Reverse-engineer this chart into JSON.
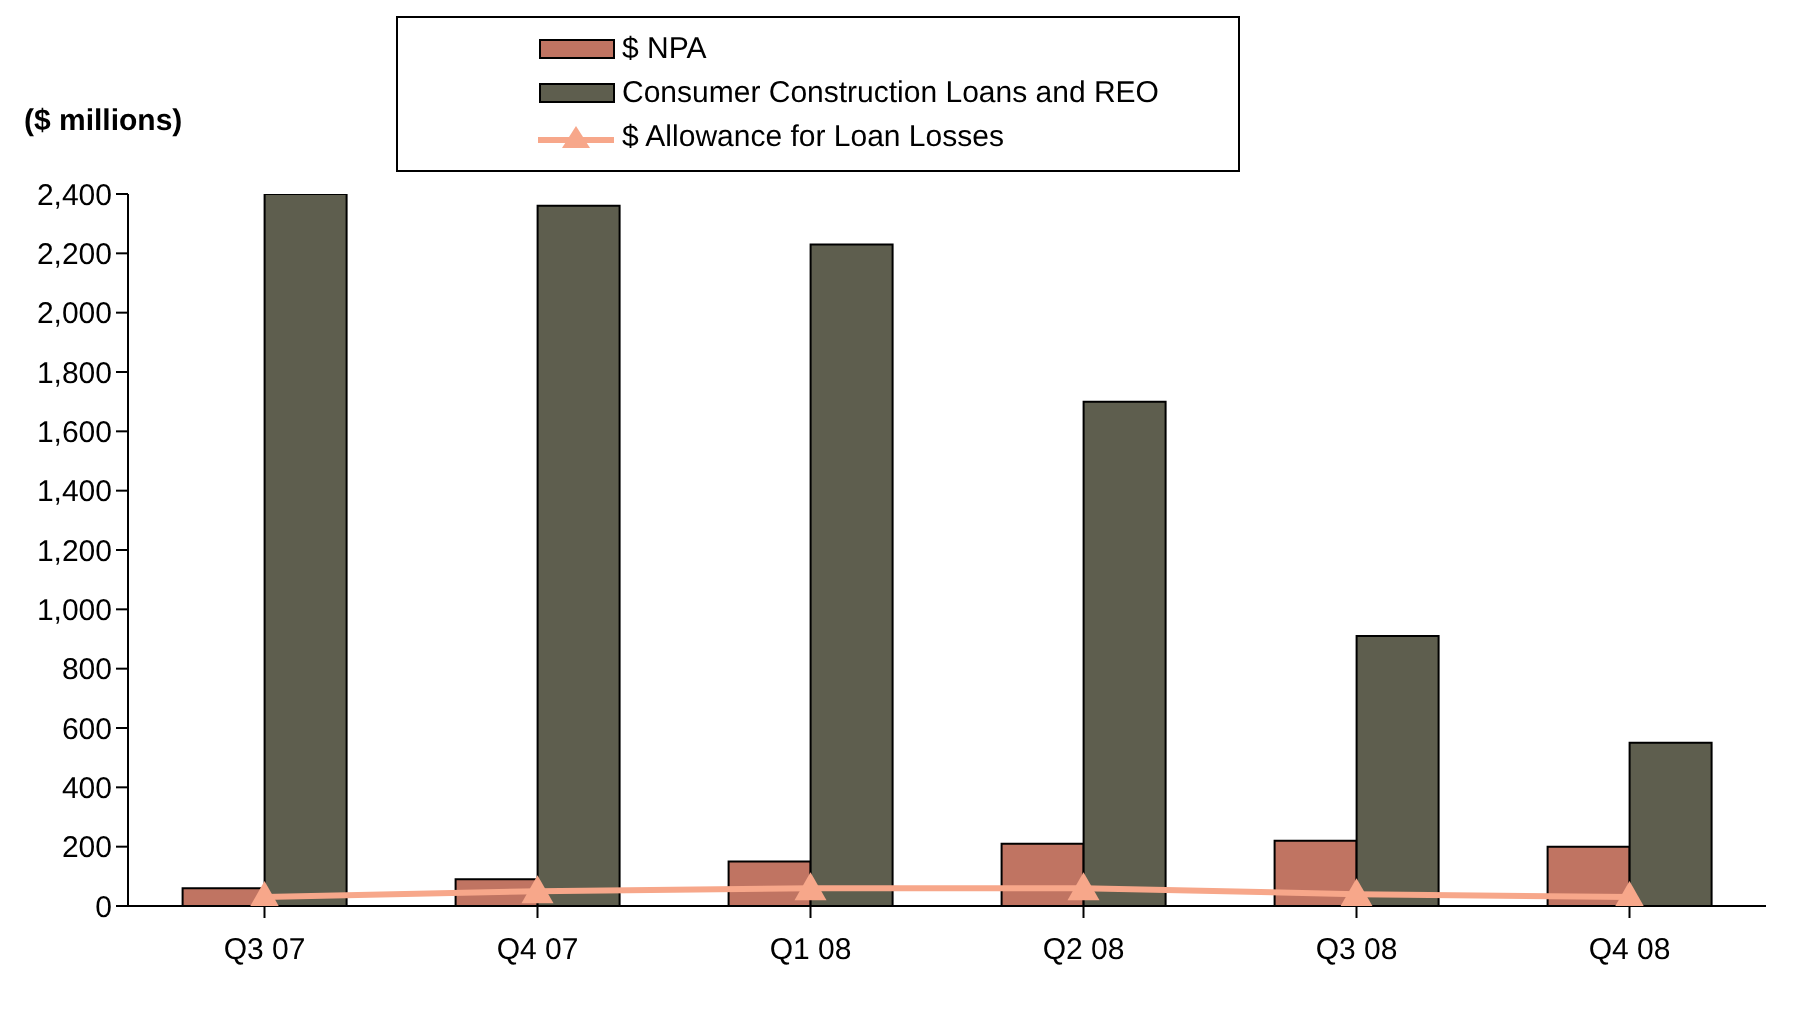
{
  "chart_data": {
    "type": "bar",
    "ylabel": "($ millions)",
    "categories": [
      "Q3 07",
      "Q4 07",
      "Q1 08",
      "Q2 08",
      "Q3 08",
      "Q4 08"
    ],
    "series": [
      {
        "name": "$ NPA",
        "color": "#c07462",
        "values": [
          60,
          90,
          150,
          210,
          220,
          200
        ]
      },
      {
        "name": "Consumer Construction Loans and REO",
        "color": "#5e5e4e",
        "values": [
          2400,
          2360,
          2230,
          1700,
          910,
          550
        ]
      },
      {
        "name": "$ Allowance for Loan Losses",
        "type": "line",
        "color": "#f7a78a",
        "marker": "triangle",
        "values": [
          30,
          50,
          60,
          60,
          40,
          30
        ]
      }
    ],
    "ylim": [
      0,
      2400
    ],
    "yticks": [
      {
        "value": 0,
        "label": "0"
      },
      {
        "value": 200,
        "label": "200"
      },
      {
        "value": 400,
        "label": "400"
      },
      {
        "value": 600,
        "label": "600"
      },
      {
        "value": 800,
        "label": "800"
      },
      {
        "value": 1000,
        "label": "1,000"
      },
      {
        "value": 1200,
        "label": "1,200"
      },
      {
        "value": 1400,
        "label": "1,400"
      },
      {
        "value": 1600,
        "label": "1,600"
      },
      {
        "value": 1800,
        "label": "1,800"
      },
      {
        "value": 2000,
        "label": "2,000"
      },
      {
        "value": 2200,
        "label": "2,200"
      },
      {
        "value": 2400,
        "label": "2,400"
      }
    ],
    "grid": false,
    "legend": "top"
  }
}
